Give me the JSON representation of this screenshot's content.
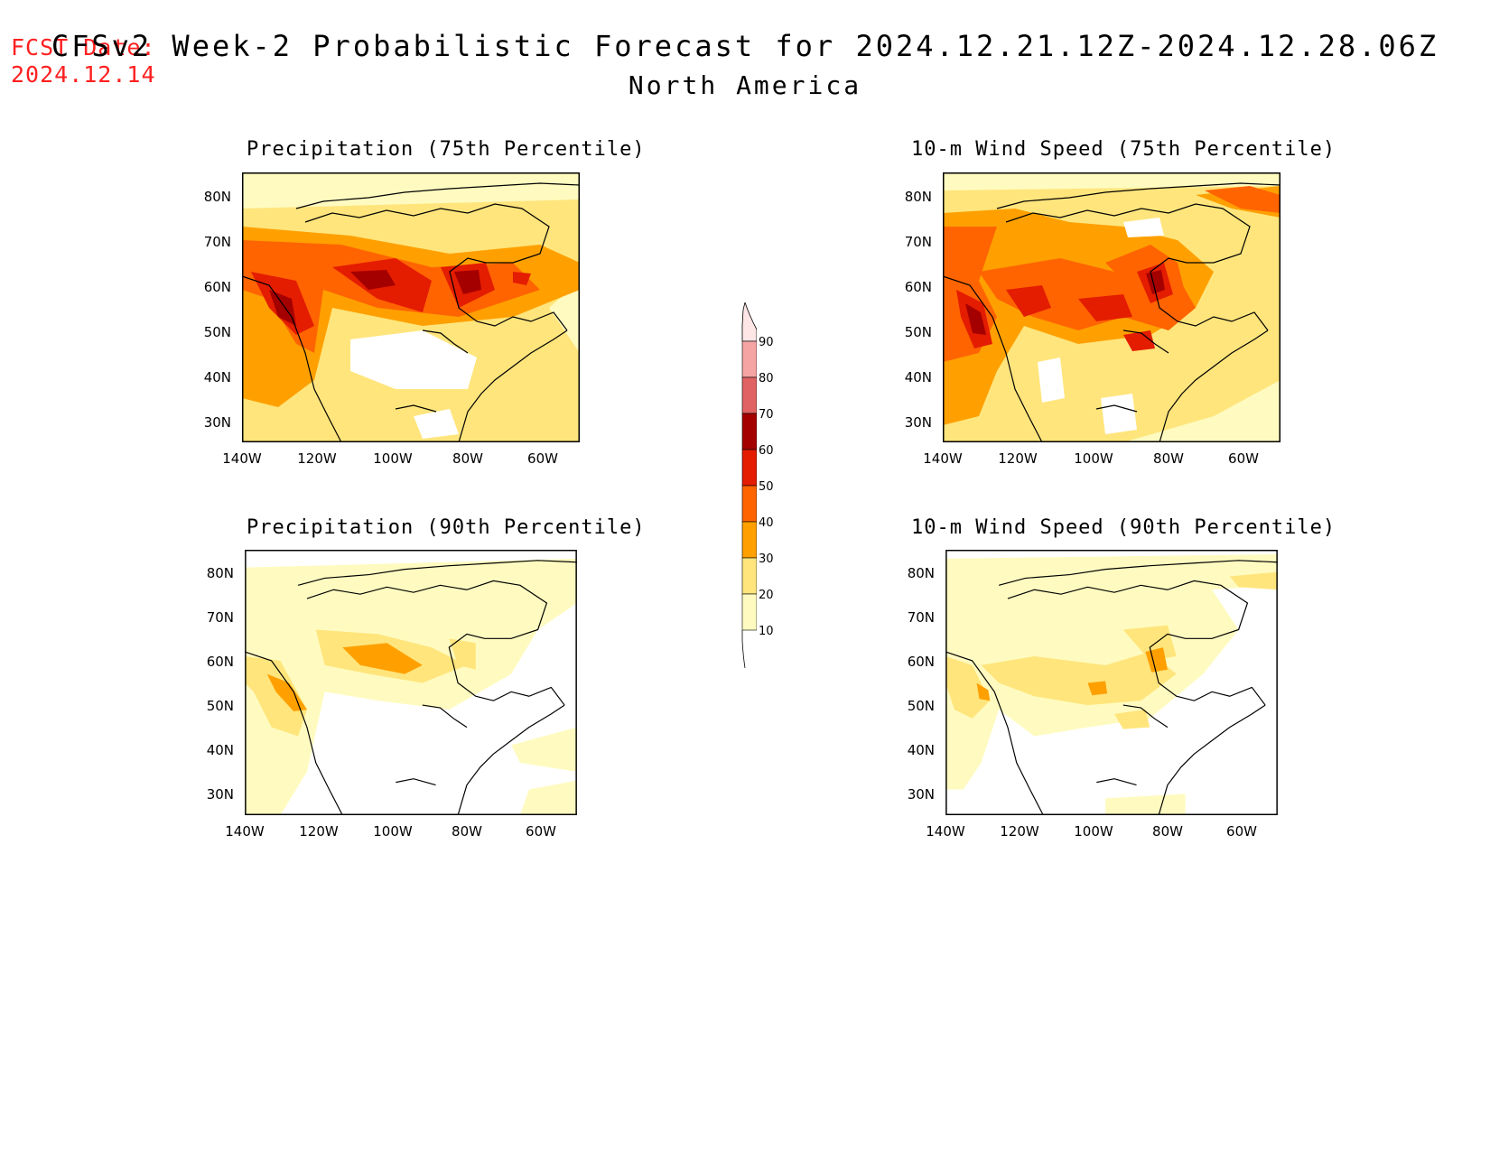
{
  "header": {
    "fcst_label": "FCST Date:",
    "fcst_date": "2024.12.14",
    "title": "CFSv2 Week-2 Probabilistic Forecast for 2024.12.21.12Z-2024.12.28.06Z",
    "subtitle": "North America"
  },
  "axes": {
    "lat_ticks": [
      "80N",
      "70N",
      "60N",
      "50N",
      "40N",
      "30N"
    ],
    "lon_ticks": [
      "140W",
      "120W",
      "100W",
      "80W",
      "60W"
    ]
  },
  "panels": [
    {
      "title": "Precipitation (75th Percentile)"
    },
    {
      "title": "10-m Wind Speed (75th Percentile)"
    },
    {
      "title": "Precipitation (90th Percentile)"
    },
    {
      "title": "10-m Wind Speed (90th Percentile)"
    }
  ],
  "colorbar": {
    "labels": [
      "90",
      "80",
      "70",
      "60",
      "50",
      "40",
      "30",
      "20",
      "10"
    ],
    "colors": {
      "c10": "#fffbc0",
      "c20": "#ffe57c",
      "c30": "#ffa000",
      "c40": "#ff6400",
      "c50": "#e41c00",
      "c60": "#a50000",
      "c70": "#e06262",
      "c80": "#f5a3a3",
      "c90": "#ffe6e6"
    }
  }
}
